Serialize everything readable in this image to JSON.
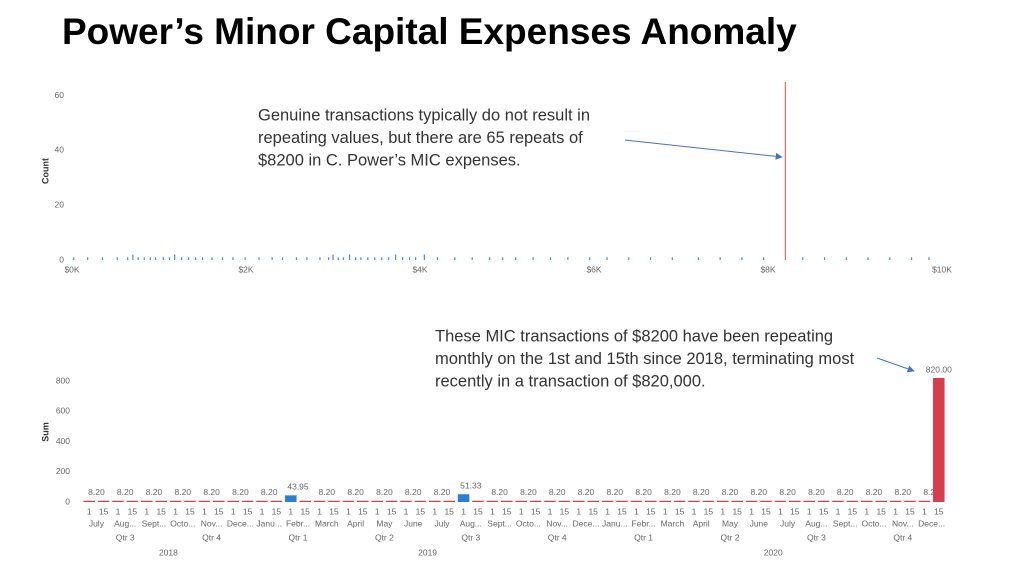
{
  "title": "Power’s Minor Capital Expenses Anomaly",
  "chart_data": [
    {
      "type": "spike",
      "ylabel": "Count",
      "xlim": [
        0,
        10000
      ],
      "ylim": [
        0,
        65
      ],
      "xticks": [
        {
          "value": 0,
          "label": "$0K"
        },
        {
          "value": 2000,
          "label": "$2K"
        },
        {
          "value": 4000,
          "label": "$4K"
        },
        {
          "value": 6000,
          "label": "$6K"
        },
        {
          "value": 8000,
          "label": "$8K"
        },
        {
          "value": 10000,
          "label": "$10K"
        }
      ],
      "yticks": [
        0,
        20,
        40,
        60
      ],
      "series": [
        {
          "color": "#3d8fd6",
          "x": [
            20,
            180,
            350,
            520,
            640,
            700,
            760,
            830,
            900,
            960,
            1050,
            1120,
            1180,
            1260,
            1340,
            1420,
            1500,
            1610,
            1730,
            1850,
            1990,
            2150,
            2300,
            2420,
            2580,
            2700,
            2850,
            2950,
            3000,
            3060,
            3120,
            3190,
            3260,
            3320,
            3400,
            3480,
            3560,
            3640,
            3720,
            3800,
            3880,
            3950,
            4050,
            4200,
            4400,
            4600,
            4800,
            4950,
            5100,
            5300,
            5500,
            5700,
            5950,
            6150,
            6400,
            6650,
            6900,
            7200,
            7450,
            7700,
            7950,
            8400,
            8650,
            8900,
            9150,
            9400,
            9650,
            9850
          ],
          "values": [
            1,
            1,
            1,
            1,
            1,
            2,
            1,
            1,
            1,
            1,
            1,
            1,
            2,
            1,
            1,
            1,
            1,
            1,
            1,
            1,
            1,
            1,
            1,
            1,
            1,
            1,
            1,
            1,
            2,
            1,
            1,
            2,
            1,
            1,
            1,
            1,
            1,
            1,
            2,
            1,
            1,
            1,
            2,
            1,
            1,
            1,
            1,
            1,
            1,
            1,
            1,
            1,
            1,
            1,
            1,
            1,
            1,
            1,
            1,
            1,
            1,
            1,
            1,
            1,
            1,
            1,
            1,
            1
          ]
        },
        {
          "color": "#e06c6c",
          "x": [
            8200
          ],
          "values": [
            65
          ]
        }
      ],
      "annotation": [
        "Genuine transactions typically do not result in",
        "repeating values, but there are 65 repeats of",
        "$8200 in C. Power’s MIC expenses."
      ]
    },
    {
      "type": "bar",
      "ylabel": "Sum",
      "ylim": [
        0,
        820
      ],
      "yticks": [
        0,
        200,
        400,
        600,
        800
      ],
      "categories": [
        "1",
        "15",
        "1",
        "15",
        "1",
        "15",
        "1",
        "15",
        "1",
        "15",
        "1",
        "15",
        "1",
        "15",
        "1",
        "15",
        "1",
        "15",
        "1",
        "15",
        "1",
        "15",
        "1",
        "15",
        "1",
        "15",
        "1",
        "15",
        "1",
        "15",
        "1",
        "15",
        "1",
        "15",
        "1",
        "15",
        "1",
        "15",
        "1",
        "15",
        "1",
        "15",
        "1",
        "15",
        "1",
        "15",
        "1",
        "15",
        "1",
        "15",
        "1",
        "15",
        "1",
        "15",
        "1",
        "15",
        "1",
        "15",
        "1",
        "15"
      ],
      "values": [
        8.2,
        8.2,
        8.2,
        8.2,
        8.2,
        8.2,
        8.2,
        8.2,
        8.2,
        8.2,
        8.2,
        8.2,
        8.2,
        8.2,
        43.95,
        8.2,
        8.2,
        8.2,
        8.2,
        8.2,
        8.2,
        8.2,
        8.2,
        8.2,
        8.2,
        8.2,
        51.33,
        8.2,
        8.2,
        8.2,
        8.2,
        8.2,
        8.2,
        8.2,
        8.2,
        8.2,
        8.2,
        8.2,
        8.2,
        8.2,
        8.2,
        8.2,
        8.2,
        8.2,
        8.2,
        8.2,
        8.2,
        8.2,
        8.2,
        8.2,
        8.2,
        8.2,
        8.2,
        8.2,
        8.2,
        8.2,
        8.2,
        8.2,
        8.2,
        820
      ],
      "value_labels": [
        "8.20",
        null,
        "8.20",
        null,
        "8.20",
        null,
        "8.20",
        null,
        "8.20",
        null,
        "8.20",
        null,
        "8.20",
        null,
        "43.95",
        null,
        "8.20",
        null,
        "8.20",
        null,
        "8.20",
        null,
        "8.20",
        null,
        "8.20",
        null,
        "51.33",
        null,
        "8.20",
        null,
        "8.20",
        null,
        "8.20",
        null,
        "8.20",
        null,
        "8.20",
        null,
        "8.20",
        null,
        "8.20",
        null,
        "8.20",
        null,
        "8.20",
        null,
        "8.20",
        null,
        "8.20",
        null,
        "8.20",
        null,
        "8.20",
        null,
        "8.20",
        null,
        "8.20",
        null,
        "8.20",
        "820.00"
      ],
      "colors": [
        "#d63e4d",
        "#d63e4d",
        "#d63e4d",
        "#d63e4d",
        "#d63e4d",
        "#d63e4d",
        "#d63e4d",
        "#d63e4d",
        "#d63e4d",
        "#d63e4d",
        "#d63e4d",
        "#d63e4d",
        "#d63e4d",
        "#d63e4d",
        "#2a7fd4",
        "#d63e4d",
        "#d63e4d",
        "#d63e4d",
        "#d63e4d",
        "#d63e4d",
        "#d63e4d",
        "#d63e4d",
        "#d63e4d",
        "#d63e4d",
        "#d63e4d",
        "#d63e4d",
        "#2a7fd4",
        "#d63e4d",
        "#d63e4d",
        "#d63e4d",
        "#d63e4d",
        "#d63e4d",
        "#d63e4d",
        "#d63e4d",
        "#d63e4d",
        "#d63e4d",
        "#d63e4d",
        "#d63e4d",
        "#d63e4d",
        "#d63e4d",
        "#d63e4d",
        "#d63e4d",
        "#d63e4d",
        "#d63e4d",
        "#d63e4d",
        "#d63e4d",
        "#d63e4d",
        "#d63e4d",
        "#d63e4d",
        "#d63e4d",
        "#d63e4d",
        "#d63e4d",
        "#d63e4d",
        "#d63e4d",
        "#d63e4d",
        "#d63e4d",
        "#d63e4d",
        "#d63e4d",
        "#d63e4d",
        "#d63e4d"
      ],
      "years": [
        {
          "label": "2018",
          "quarters": [
            {
              "label": "Qtr 3",
              "months": [
                "July",
                "Aug...",
                "Sept..."
              ]
            },
            {
              "label": "Qtr 4",
              "months": [
                "Octo...",
                "Nov...",
                "Dece..."
              ]
            }
          ]
        },
        {
          "label": "2019",
          "quarters": [
            {
              "label": "Qtr 1",
              "months": [
                "Janu...",
                "Febr...",
                "March"
              ]
            },
            {
              "label": "Qtr 2",
              "months": [
                "April",
                "May",
                "June"
              ]
            },
            {
              "label": "Qtr 3",
              "months": [
                "July",
                "Aug...",
                "Sept..."
              ]
            },
            {
              "label": "Qtr 4",
              "months": [
                "Octo...",
                "Nov...",
                "Dece..."
              ]
            }
          ]
        },
        {
          "label": "2020",
          "quarters": [
            {
              "label": "Qtr 1",
              "months": [
                "Janu...",
                "Febr...",
                "March"
              ]
            },
            {
              "label": "Qtr 2",
              "months": [
                "April",
                "May",
                "June"
              ]
            },
            {
              "label": "Qtr 3",
              "months": [
                "July",
                "Aug...",
                "Sept..."
              ]
            },
            {
              "label": "Qtr 4",
              "months": [
                "Octo...",
                "Nov...",
                "Dece..."
              ]
            }
          ]
        }
      ],
      "annotation": [
        "These MIC transactions of $8200 have been repeating",
        "monthly on the 1st and 15th since 2018, terminating most",
        "recently in a transaction of $820,000."
      ]
    }
  ]
}
